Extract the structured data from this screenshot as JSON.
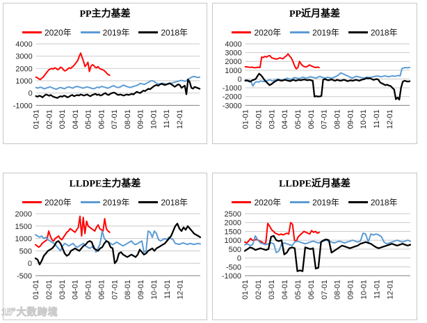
{
  "watermark": {
    "logo": "15°",
    "text": "大数跨境"
  },
  "x_ticks": [
    "01-01",
    "02-01",
    "03-01",
    "04-01",
    "05-01",
    "06-01",
    "07-01",
    "08-01",
    "09-01",
    "10-01",
    "11-01",
    "12-01"
  ],
  "colors": {
    "red": "#ff0000",
    "blue": "#5b9bd5",
    "black": "#000000",
    "grid": "#c9c9c9",
    "axis": "#808080",
    "tick_text": "#262626"
  },
  "chart_data": [
    {
      "type": "line",
      "title": "PP主力基差",
      "ylim": [
        -1000,
        4000
      ],
      "ystep": 1000,
      "legend_position": "top",
      "grid": true,
      "series": [
        {
          "name": "2020年",
          "color_key": "red",
          "span": [
            0,
            0.45
          ],
          "values": [
            1300,
            1250,
            1150,
            1100,
            1200,
            1300,
            1450,
            1600,
            1750,
            1900,
            1950,
            2000,
            1950,
            2050,
            2000,
            1900,
            1950,
            2100,
            2050,
            1900,
            1800,
            1850,
            1950,
            2050,
            2000,
            2100,
            2200,
            2350,
            2500,
            2650,
            3000,
            3250,
            2900,
            2550,
            2150,
            2300,
            2500,
            1750,
            2150,
            2300,
            2250,
            2100,
            2050,
            2150,
            2000,
            1950,
            1900,
            1850,
            1750,
            1600,
            1500,
            1450
          ]
        },
        {
          "name": "2019年",
          "color_key": "blue",
          "span": [
            0,
            1
          ],
          "values": [
            450,
            400,
            480,
            430,
            350,
            400,
            460,
            500,
            420,
            360,
            310,
            400,
            450,
            400,
            350,
            450,
            500,
            450,
            400,
            490,
            540,
            500,
            450,
            400,
            450,
            500,
            450,
            400,
            350,
            400,
            480,
            440,
            540,
            500,
            450,
            400,
            450,
            540,
            600,
            500,
            450,
            480,
            580,
            640,
            550,
            500,
            450,
            500,
            550,
            600,
            680,
            780,
            740,
            700,
            790,
            880,
            980,
            1010,
            900,
            800,
            720,
            760,
            800,
            750,
            700,
            740,
            790,
            840,
            890,
            940,
            990,
            1030,
            1000,
            950,
            1080,
            1180,
            1280,
            1350,
            1320,
            1260,
            1300
          ]
        },
        {
          "name": "2018年",
          "color_key": "black",
          "span": [
            0,
            1
          ],
          "values": [
            -250,
            -300,
            -220,
            -260,
            -350,
            -220,
            -120,
            -160,
            -220,
            -160,
            -260,
            -320,
            -360,
            -400,
            -310,
            -260,
            -300,
            -210,
            -260,
            -350,
            -300,
            -210,
            -160,
            -260,
            -210,
            -160,
            -200,
            -110,
            -160,
            -210,
            -160,
            -110,
            -200,
            -260,
            -160,
            -110,
            -60,
            -160,
            -110,
            -200,
            -160,
            -60,
            0,
            -110,
            -160,
            -60,
            0,
            40,
            0,
            -110,
            -160,
            -110,
            -160,
            -210,
            -160,
            -110,
            -160,
            -110,
            -60,
            -110,
            0,
            100,
            50,
            0,
            100,
            200,
            160,
            260,
            350,
            310,
            420,
            520,
            610,
            650,
            600,
            700,
            760,
            700,
            650,
            710,
            760,
            800,
            700,
            600,
            510,
            610,
            700,
            650,
            420,
            510,
            600,
            -100,
            1100,
            900,
            420,
            360,
            500,
            450,
            400,
            350
          ]
        }
      ]
    },
    {
      "type": "line",
      "title": "PP近月基差",
      "ylim": [
        -3000,
        4000
      ],
      "ystep": 1000,
      "legend_position": "top",
      "grid": true,
      "series": [
        {
          "name": "2020年",
          "color_key": "red",
          "span": [
            0,
            0.45
          ],
          "values": [
            1400,
            1380,
            1350,
            1320,
            1350,
            1300,
            1280,
            1300,
            1340,
            1300,
            2500,
            2450,
            2560,
            2500,
            2620,
            2650,
            2420,
            2350,
            2300,
            2260,
            2320,
            2400,
            2350,
            2300,
            2500,
            2620,
            2850,
            2600,
            2400,
            2000,
            1500,
            1150,
            1300,
            2000,
            1700,
            1500,
            1400,
            1360,
            1450,
            1600,
            1500,
            1420,
            1350,
            1300,
            1360,
            1300
          ]
        },
        {
          "name": "2019年",
          "color_key": "blue",
          "span": [
            0,
            1
          ],
          "values": [
            -100,
            -220,
            -150,
            -300,
            -800,
            -420,
            -300,
            -350,
            -220,
            -260,
            -300,
            -220,
            -150,
            -100,
            -220,
            -160,
            -100,
            0,
            -100,
            -160,
            -60,
            0,
            100,
            0,
            -60,
            100,
            160,
            100,
            60,
            100,
            200,
            160,
            100,
            160,
            260,
            200,
            160,
            100,
            200,
            300,
            200,
            150,
            100,
            200,
            150,
            100,
            150,
            250,
            350,
            500,
            700,
            600,
            500,
            400,
            300,
            200,
            100,
            200,
            300,
            260,
            200,
            160,
            100,
            160,
            220,
            160,
            200,
            260,
            300,
            350,
            300,
            260,
            300,
            360,
            300,
            260,
            310,
            360,
            300,
            350,
            400,
            350,
            1200,
            1260,
            1300,
            1260,
            1320
          ]
        },
        {
          "name": "2018年",
          "color_key": "black",
          "span": [
            0,
            1
          ],
          "values": [
            -200,
            -150,
            -250,
            -300,
            -150,
            -100,
            0,
            300,
            600,
            450,
            200,
            -100,
            -300,
            -500,
            -700,
            -600,
            -450,
            -300,
            -200,
            -100,
            -150,
            -200,
            -150,
            -100,
            -150,
            -200,
            -250,
            -150,
            -100,
            -200,
            -150,
            -100,
            -150,
            -100,
            -50,
            -100,
            -150,
            -100,
            -150,
            -200,
            -2000,
            -1950,
            -2000,
            -1980,
            -1950,
            -100,
            0,
            -100,
            -150,
            -100,
            -50,
            -150,
            -200,
            -100,
            -150,
            -200,
            -150,
            -100,
            -150,
            -250,
            -200,
            -150,
            -200,
            -150,
            -100,
            -150,
            -200,
            -100,
            -50,
            0,
            100,
            50,
            100,
            0,
            -100,
            -50,
            0,
            -100,
            -400,
            -500,
            -600,
            -700,
            -650,
            -750,
            -800,
            -1000,
            -1200,
            -2300,
            -2100,
            -2350,
            -1000,
            -300,
            -200,
            -250,
            -300,
            -250
          ]
        }
      ]
    },
    {
      "type": "line",
      "title": "LLDPE主力基差",
      "ylim": [
        -500,
        2000
      ],
      "ystep": 500,
      "legend_position": "top",
      "grid": true,
      "series": [
        {
          "name": "2020年",
          "color_key": "red",
          "span": [
            0,
            0.45
          ],
          "values": [
            750,
            700,
            650,
            700,
            800,
            850,
            900,
            950,
            1300,
            1100,
            950,
            900,
            1000,
            1050,
            1100,
            1000,
            950,
            1050,
            1150,
            1250,
            1300,
            1400,
            1350,
            1300,
            1250,
            1350,
            1450,
            1900,
            1100,
            1850,
            1200,
            1700,
            1500,
            1450,
            1400,
            1350,
            1300,
            1450,
            1550,
            1400,
            1350,
            1300,
            1800,
            1400,
            1300,
            1250
          ]
        },
        {
          "name": "2019年",
          "color_key": "blue",
          "span": [
            0,
            1
          ],
          "values": [
            1150,
            1100,
            1050,
            1100,
            1000,
            1050,
            950,
            900,
            850,
            800,
            700,
            600,
            500,
            700,
            800,
            750,
            700,
            750,
            800,
            700,
            650,
            700,
            750,
            800,
            700,
            650,
            600,
            650,
            700,
            450,
            600,
            800,
            1300,
            1000,
            900,
            850,
            800,
            750,
            800,
            850,
            800,
            750,
            700,
            750,
            800,
            850,
            900,
            800,
            750,
            800,
            850,
            900,
            450,
            500,
            1300,
            1250,
            1050,
            1300,
            1200,
            950,
            900,
            950,
            1000,
            950,
            1050,
            1000,
            950,
            800,
            780,
            760,
            800,
            820,
            780,
            760,
            800,
            780,
            760,
            780,
            800,
            780
          ]
        },
        {
          "name": "2018年",
          "color_key": "black",
          "span": [
            0,
            1
          ],
          "values": [
            200,
            150,
            -50,
            100,
            300,
            400,
            500,
            550,
            600,
            700,
            850,
            900,
            800,
            600,
            400,
            300,
            350,
            500,
            550,
            600,
            550,
            500,
            600,
            700,
            750,
            850,
            900,
            850,
            600,
            550,
            500,
            600,
            650,
            800,
            900,
            850,
            650,
            600,
            0,
            100,
            400,
            450,
            350,
            300,
            250,
            300,
            350,
            300,
            250,
            350,
            550,
            450,
            350,
            400,
            500,
            550,
            600,
            500,
            600,
            650,
            700,
            750,
            800,
            900,
            1000,
            1100,
            1300,
            1500,
            1600,
            1400,
            1300,
            1450,
            1350,
            1500,
            1400,
            1300,
            1200,
            1150,
            1100,
            1050
          ]
        }
      ]
    },
    {
      "type": "line",
      "title": "LLDPE近月基差",
      "ylim": [
        -1000,
        2500
      ],
      "ystep": 500,
      "legend_position": "top",
      "grid": true,
      "series": [
        {
          "name": "2020年",
          "color_key": "red",
          "span": [
            0,
            0.45
          ],
          "values": [
            900,
            850,
            950,
            1100,
            1000,
            1000,
            1050,
            1000,
            950,
            900,
            800,
            850,
            1950,
            1800,
            1600,
            1500,
            1400,
            1350,
            1300,
            1350,
            1300,
            1350,
            1400,
            1350,
            2000,
            1900,
            1000,
            950,
            1200,
            1300,
            1400,
            1500,
            1450,
            1400,
            1350,
            1550,
            1450,
            1500,
            1400,
            1450
          ]
        },
        {
          "name": "2019年",
          "color_key": "blue",
          "span": [
            0,
            1
          ],
          "values": [
            750,
            800,
            700,
            750,
            1250,
            1000,
            850,
            800,
            750,
            800,
            850,
            800,
            300,
            400,
            800,
            850,
            800,
            750,
            700,
            900,
            950,
            900,
            850,
            800,
            850,
            900,
            950,
            900,
            850,
            900,
            950,
            1000,
            950,
            900,
            850,
            900,
            950,
            900,
            850,
            900,
            950,
            1000,
            950,
            900,
            950,
            1400,
            1350,
            900,
            1350,
            1300,
            1350,
            1300,
            1200,
            900,
            800,
            850,
            900,
            950,
            1000,
            950,
            900,
            950,
            1000,
            950
          ]
        },
        {
          "name": "2018年",
          "color_key": "black",
          "span": [
            0,
            1
          ],
          "values": [
            400,
            500,
            600,
            550,
            450,
            500,
            550,
            500,
            450,
            500,
            1200,
            1250,
            1000,
            950,
            1000,
            200,
            300,
            550,
            600,
            550,
            -750,
            -700,
            -750,
            600,
            550,
            500,
            550,
            -600,
            -550,
            900,
            1000,
            1050,
            1000,
            300,
            400,
            500,
            600,
            700,
            650,
            600,
            550,
            600,
            650,
            700,
            800,
            850,
            900,
            850,
            800,
            700,
            600,
            550,
            600,
            650,
            700,
            750,
            800,
            750,
            700,
            750,
            800,
            750,
            700,
            750
          ]
        }
      ]
    }
  ]
}
